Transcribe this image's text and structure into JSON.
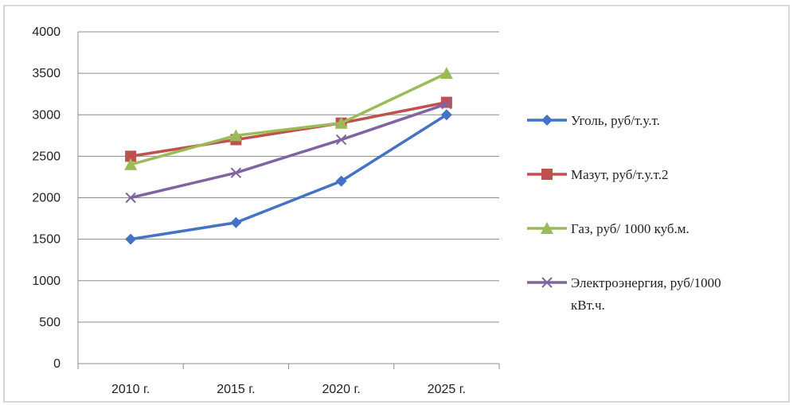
{
  "chart_data": {
    "type": "line",
    "title": "",
    "xlabel": "",
    "ylabel": "",
    "categories": [
      "2010 г.",
      "2015 г.",
      "2020 г.",
      "2025 г."
    ],
    "ylim": [
      0,
      4000
    ],
    "yticks": [
      "0",
      "500",
      "1000",
      "1500",
      "2000",
      "2500",
      "3000",
      "3500",
      "4000"
    ],
    "grid": true,
    "legend_position": "right",
    "series": [
      {
        "name": "Уголь, руб/т.у.т.",
        "values": [
          1500,
          1700,
          2200,
          3000
        ],
        "color": "#4472c4",
        "marker": "diamond"
      },
      {
        "name": "Мазут, руб/т.у.т.2",
        "values": [
          2500,
          2700,
          2900,
          3150
        ],
        "color": "#c0504d",
        "marker": "square"
      },
      {
        "name": "Газ, руб/ 1000 куб.м.",
        "values": [
          2400,
          2750,
          2900,
          3500
        ],
        "color": "#9bbb59",
        "marker": "triangle"
      },
      {
        "name": "Электроэнергия, руб/1000 кВт.ч.",
        "values": [
          2000,
          2300,
          2700,
          3130
        ],
        "color": "#8064a2",
        "marker": "x"
      }
    ]
  }
}
